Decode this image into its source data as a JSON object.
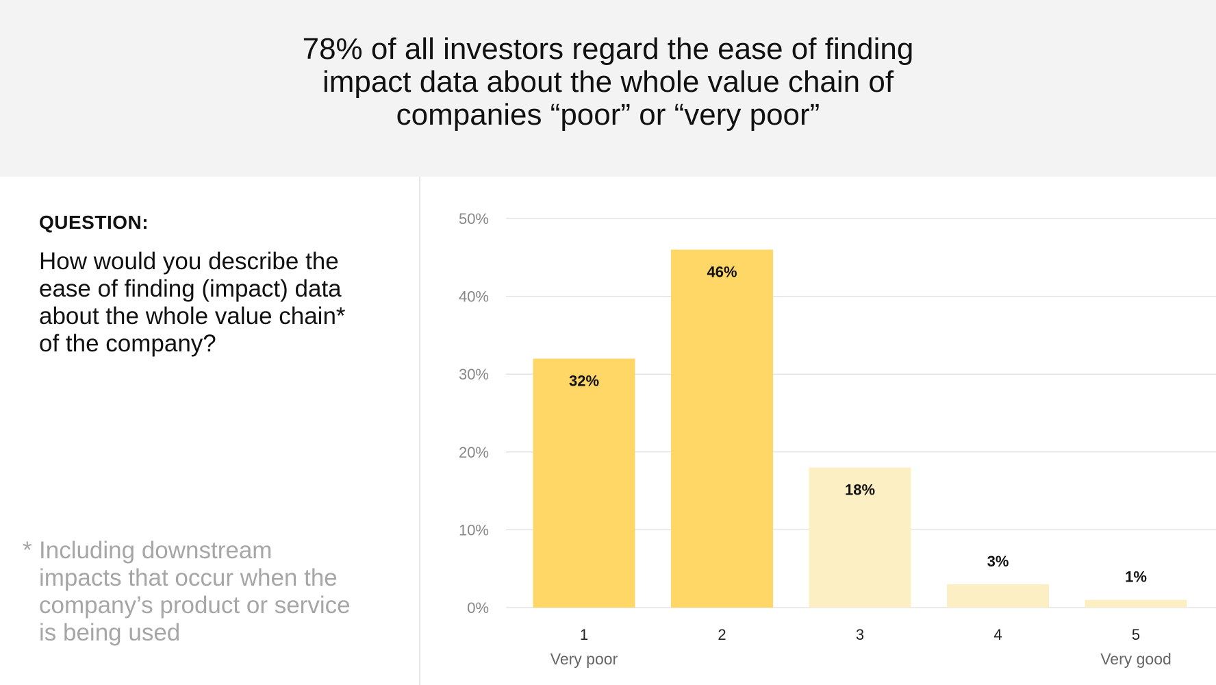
{
  "header": {
    "headline": "78% of all investors regard the ease of finding impact data about the whole value chain of companies “poor” or “very poor”"
  },
  "question": {
    "label": "QUESTION:",
    "text": "How would you describe the ease of finding (impact) data about the whole value chain* of the company?"
  },
  "footnote": {
    "star": "*",
    "text": "Including downstream impacts that occur when the company’s product or service is being used"
  },
  "chart_data": {
    "type": "bar",
    "categories": [
      "1",
      "2",
      "3",
      "4",
      "5"
    ],
    "category_sublabels": [
      "Very poor",
      "",
      "",
      "",
      "Very good"
    ],
    "values": [
      32,
      46,
      18,
      3,
      1
    ],
    "value_labels": [
      "32%",
      "46%",
      "18%",
      "3%",
      "1%"
    ],
    "ylim": [
      0,
      50
    ],
    "yticks": [
      0,
      10,
      20,
      30,
      40,
      50
    ],
    "ytick_labels": [
      "0%",
      "10%",
      "20%",
      "30%",
      "40%",
      "50%"
    ],
    "grid": true,
    "bar_colors": [
      "#ffd766",
      "#ffd766",
      "#fdefc4",
      "#fdefc4",
      "#fdefc4"
    ],
    "grid_color": "#e3e3e3"
  }
}
